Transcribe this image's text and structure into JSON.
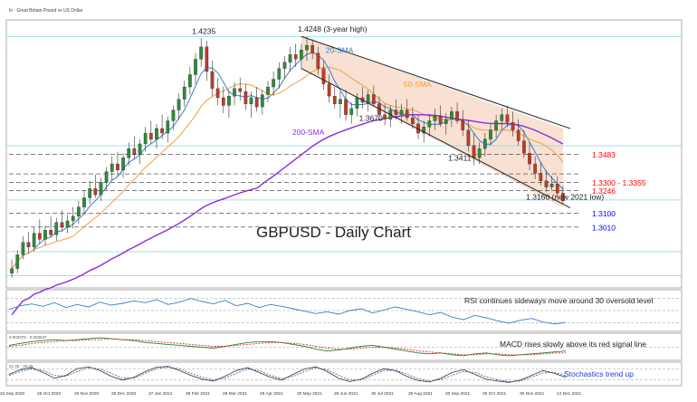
{
  "header_text": "fx · Great Britain Pound vs US Dollar",
  "chart_data": [
    {
      "panel": "price",
      "type": "candlestick",
      "title": "GBPUSD - Daily Chart",
      "x_labels": [
        "24 Sep 2020",
        "26 Oct 2020",
        "26 Nov 2020",
        "28 Dec 2020",
        "27 Jan 2021",
        "26 Feb 2021",
        "28 Mar 2021",
        "29 Apr 2021",
        "30 May 2021",
        "28 Jun 2021",
        "30 Jul 2021",
        "30 Aug 2021",
        "30 Sep 2021",
        "29 Oct 2021",
        "30 Nov 2021",
        "14 Dec 2021"
      ],
      "ylim": [
        1.265,
        1.432
      ],
      "grid": false,
      "candles": [
        [
          1.271,
          1.28,
          1.268,
          1.274
        ],
        [
          1.274,
          1.286,
          1.271,
          1.283
        ],
        [
          1.283,
          1.295,
          1.28,
          1.291
        ],
        [
          1.291,
          1.298,
          1.284,
          1.288
        ],
        [
          1.288,
          1.301,
          1.285,
          1.297
        ],
        [
          1.297,
          1.306,
          1.29,
          1.293
        ],
        [
          1.293,
          1.302,
          1.289,
          1.299
        ],
        [
          1.299,
          1.308,
          1.294,
          1.296
        ],
        [
          1.296,
          1.307,
          1.292,
          1.304
        ],
        [
          1.304,
          1.312,
          1.298,
          1.301
        ],
        [
          1.301,
          1.309,
          1.297,
          1.305
        ],
        [
          1.305,
          1.314,
          1.3,
          1.308
        ],
        [
          1.308,
          1.318,
          1.303,
          1.314
        ],
        [
          1.314,
          1.325,
          1.309,
          1.32
        ],
        [
          1.32,
          1.331,
          1.316,
          1.326
        ],
        [
          1.326,
          1.335,
          1.32,
          1.322
        ],
        [
          1.322,
          1.333,
          1.318,
          1.33
        ],
        [
          1.33,
          1.34,
          1.325,
          1.337
        ],
        [
          1.337,
          1.347,
          1.331,
          1.342
        ],
        [
          1.342,
          1.35,
          1.334,
          1.338
        ],
        [
          1.338,
          1.349,
          1.333,
          1.346
        ],
        [
          1.346,
          1.356,
          1.341,
          1.352
        ],
        [
          1.352,
          1.36,
          1.345,
          1.348
        ],
        [
          1.348,
          1.358,
          1.342,
          1.355
        ],
        [
          1.355,
          1.366,
          1.35,
          1.362
        ],
        [
          1.362,
          1.37,
          1.355,
          1.358
        ],
        [
          1.358,
          1.368,
          1.352,
          1.365
        ],
        [
          1.365,
          1.374,
          1.358,
          1.362
        ],
        [
          1.362,
          1.373,
          1.356,
          1.37
        ],
        [
          1.37,
          1.38,
          1.364,
          1.377
        ],
        [
          1.377,
          1.388,
          1.371,
          1.384
        ],
        [
          1.384,
          1.396,
          1.379,
          1.392
        ],
        [
          1.392,
          1.405,
          1.387,
          1.4
        ],
        [
          1.4,
          1.414,
          1.394,
          1.41
        ],
        [
          1.41,
          1.4235,
          1.405,
          1.418
        ],
        [
          1.418,
          1.422,
          1.396,
          1.402
        ],
        [
          1.402,
          1.409,
          1.386,
          1.391
        ],
        [
          1.391,
          1.398,
          1.38,
          1.385
        ],
        [
          1.385,
          1.392,
          1.375,
          1.38
        ],
        [
          1.38,
          1.39,
          1.372,
          1.386
        ],
        [
          1.386,
          1.395,
          1.38,
          1.391
        ],
        [
          1.391,
          1.398,
          1.383,
          1.389
        ],
        [
          1.389,
          1.394,
          1.377,
          1.381
        ],
        [
          1.381,
          1.389,
          1.372,
          1.385
        ],
        [
          1.385,
          1.392,
          1.376,
          1.379
        ],
        [
          1.379,
          1.39,
          1.374,
          1.387
        ],
        [
          1.387,
          1.396,
          1.382,
          1.392
        ],
        [
          1.392,
          1.402,
          1.386,
          1.397
        ],
        [
          1.397,
          1.408,
          1.391,
          1.404
        ],
        [
          1.404,
          1.412,
          1.397,
          1.408
        ],
        [
          1.408,
          1.418,
          1.402,
          1.413
        ],
        [
          1.413,
          1.42,
          1.405,
          1.41
        ],
        [
          1.41,
          1.42,
          1.404,
          1.416
        ],
        [
          1.416,
          1.4248,
          1.409,
          1.419
        ],
        [
          1.419,
          1.423,
          1.41,
          1.414
        ],
        [
          1.414,
          1.418,
          1.4,
          1.404
        ],
        [
          1.404,
          1.409,
          1.39,
          1.394
        ],
        [
          1.394,
          1.4,
          1.382,
          1.386
        ],
        [
          1.386,
          1.392,
          1.378,
          1.381
        ],
        [
          1.381,
          1.389,
          1.372,
          1.384
        ],
        [
          1.384,
          1.39,
          1.37,
          1.374
        ],
        [
          1.374,
          1.382,
          1.368,
          1.378
        ],
        [
          1.378,
          1.388,
          1.373,
          1.385
        ],
        [
          1.385,
          1.392,
          1.378,
          1.382
        ],
        [
          1.382,
          1.39,
          1.376,
          1.387
        ],
        [
          1.387,
          1.393,
          1.379,
          1.381
        ],
        [
          1.381,
          1.386,
          1.37,
          1.374
        ],
        [
          1.374,
          1.381,
          1.367,
          1.371
        ],
        [
          1.371,
          1.38,
          1.366,
          1.377
        ],
        [
          1.377,
          1.384,
          1.371,
          1.374
        ],
        [
          1.374,
          1.381,
          1.368,
          1.377
        ],
        [
          1.377,
          1.384,
          1.37,
          1.372
        ],
        [
          1.372,
          1.379,
          1.365,
          1.368
        ],
        [
          1.368,
          1.374,
          1.358,
          1.362
        ],
        [
          1.362,
          1.37,
          1.356,
          1.366
        ],
        [
          1.366,
          1.374,
          1.36,
          1.37
        ],
        [
          1.37,
          1.378,
          1.364,
          1.373
        ],
        [
          1.373,
          1.38,
          1.366,
          1.368
        ],
        [
          1.368,
          1.375,
          1.361,
          1.371
        ],
        [
          1.371,
          1.379,
          1.366,
          1.376
        ],
        [
          1.376,
          1.382,
          1.368,
          1.37
        ],
        [
          1.37,
          1.377,
          1.36,
          1.364
        ],
        [
          1.364,
          1.37,
          1.35,
          1.354
        ],
        [
          1.354,
          1.362,
          1.341,
          1.346
        ],
        [
          1.346,
          1.356,
          1.342,
          1.352
        ],
        [
          1.352,
          1.362,
          1.347,
          1.358
        ],
        [
          1.358,
          1.368,
          1.354,
          1.364
        ],
        [
          1.364,
          1.374,
          1.359,
          1.37
        ],
        [
          1.37,
          1.378,
          1.364,
          1.374
        ],
        [
          1.374,
          1.38,
          1.366,
          1.369
        ],
        [
          1.369,
          1.376,
          1.36,
          1.364
        ],
        [
          1.364,
          1.371,
          1.354,
          1.357
        ],
        [
          1.357,
          1.364,
          1.346,
          1.349
        ],
        [
          1.349,
          1.356,
          1.338,
          1.342
        ],
        [
          1.342,
          1.347,
          1.332,
          1.336
        ],
        [
          1.336,
          1.343,
          1.328,
          1.331
        ],
        [
          1.331,
          1.338,
          1.324,
          1.327
        ],
        [
          1.327,
          1.334,
          1.3246,
          1.329
        ],
        [
          1.329,
          1.334,
          1.32,
          1.323
        ],
        [
          1.323,
          1.328,
          1.316,
          1.318
        ]
      ],
      "series": [
        {
          "name": "20-SMA",
          "color": "#3a7ec8"
        },
        {
          "name": "50-SMA",
          "color": "#f0a040"
        },
        {
          "name": "200-SMA",
          "color": "#8a2be2"
        }
      ],
      "trend_channel": {
        "upper": [
          [
            52,
            1.4248
          ],
          [
            99,
            1.365
          ]
        ],
        "lower": [
          [
            52,
            1.404
          ],
          [
            99,
            1.3135
          ]
        ],
        "fill": "#f2c9ad"
      },
      "levels": [
        {
          "value": 1.3483,
          "label": "1.3483",
          "color": "#ff0000",
          "style": "dashed"
        },
        {
          "value": 1.33,
          "label": "1.3300 - 1.3355",
          "color": "#ff0000",
          "style": "dashed"
        },
        {
          "value": 1.3355,
          "label": "",
          "color": "#333333",
          "style": "dashed"
        },
        {
          "value": 1.3246,
          "label": "1.3246",
          "color": "#ff0000",
          "style": "dashed"
        },
        {
          "value": 1.31,
          "label": "1.3100",
          "color": "#0000ff",
          "style": "dashed"
        },
        {
          "value": 1.301,
          "label": "1.3010",
          "color": "#0000ff",
          "style": "dashed"
        }
      ],
      "fib_lines": [
        1.4248,
        1.3538,
        1.3186,
        1.285,
        1.2695
      ],
      "annotations": [
        {
          "text": "1.4235",
          "x": 34,
          "y": 1.4235
        },
        {
          "text": "1.4248 (3-year high)",
          "x": 53,
          "y": 1.4248
        },
        {
          "text": "20-SMA",
          "x": 58,
          "y": 1.411
        },
        {
          "text": "50-SMA",
          "x": 72,
          "y": 1.389
        },
        {
          "text": "1.3670",
          "x": 64,
          "y": 1.367
        },
        {
          "text": "1.3411",
          "x": 80,
          "y": 1.3411
        },
        {
          "text": "200-SMA",
          "x": 52,
          "y": 1.358
        },
        {
          "text": "1.3160 (new 2021 low)",
          "x": 94,
          "y": 1.316
        }
      ]
    },
    {
      "panel": "rsi",
      "type": "line",
      "annotation": "RSI continues sideways move around 30 oversold level",
      "ylim": [
        20,
        80
      ],
      "reference_levels": [
        30,
        50,
        70
      ],
      "series": [
        {
          "values": [
            52,
            58,
            61,
            57,
            63,
            55,
            60,
            56,
            64,
            59,
            62,
            66,
            63,
            68,
            60,
            64,
            70,
            65,
            61,
            67,
            58,
            62,
            55,
            60,
            57,
            53,
            49,
            45,
            48,
            44,
            50,
            53,
            46,
            51,
            56,
            52,
            48,
            43,
            47,
            39,
            35,
            42,
            38,
            33,
            29,
            34,
            37,
            31,
            28,
            30
          ]
        }
      ]
    },
    {
      "panel": "macd",
      "type": "line",
      "header": "0.003379 · 0.003537",
      "annotation": "MACD rises slowly above its red signal line",
      "ylim": [
        -0.012,
        0.012
      ],
      "series": [
        {
          "name": "MACD",
          "color": "#2e7d32",
          "values": [
            0.002,
            0.004,
            0.006,
            0.007,
            0.008,
            0.007,
            0.008,
            0.009,
            0.01,
            0.009,
            0.008,
            0.007,
            0.005,
            0.004,
            0.003,
            0.002,
            0.001,
            0.0,
            -0.001,
            0.001,
            0.003,
            0.005,
            0.006,
            0.006,
            0.005,
            0.003,
            0.001,
            -0.002,
            -0.004,
            -0.003,
            -0.001,
            0.001,
            0.002,
            0.0,
            -0.002,
            -0.004,
            -0.006,
            -0.007,
            -0.006,
            -0.008,
            -0.009,
            -0.007,
            -0.006,
            -0.008,
            -0.009,
            -0.008,
            -0.007,
            -0.006,
            -0.005,
            -0.004
          ]
        },
        {
          "name": "Signal",
          "color": "#d32f2f",
          "values": [
            0.001,
            0.002,
            0.004,
            0.005,
            0.006,
            0.007,
            0.007,
            0.008,
            0.008,
            0.009,
            0.008,
            0.008,
            0.007,
            0.006,
            0.005,
            0.004,
            0.003,
            0.002,
            0.001,
            0.001,
            0.002,
            0.003,
            0.004,
            0.005,
            0.005,
            0.004,
            0.003,
            0.001,
            -0.001,
            -0.002,
            -0.002,
            -0.001,
            0.0,
            0.0,
            -0.001,
            -0.002,
            -0.004,
            -0.005,
            -0.006,
            -0.007,
            -0.008,
            -0.008,
            -0.007,
            -0.007,
            -0.008,
            -0.008,
            -0.008,
            -0.007,
            -0.006,
            -0.006
          ]
        }
      ]
    },
    {
      "panel": "stochastics",
      "type": "line",
      "header": "21.46 · 29.06",
      "annotation": "Stochastics trend up",
      "ylim": [
        0,
        100
      ],
      "reference_levels": [
        20,
        80
      ],
      "series": [
        {
          "name": "%K",
          "color": "#1e3a5f",
          "values": [
            50,
            75,
            85,
            60,
            30,
            45,
            80,
            90,
            70,
            40,
            20,
            35,
            65,
            88,
            92,
            70,
            45,
            25,
            15,
            40,
            70,
            85,
            60,
            35,
            20,
            50,
            78,
            90,
            65,
            30,
            12,
            25,
            55,
            80,
            70,
            40,
            18,
            10,
            30,
            60,
            75,
            50,
            25,
            15,
            8,
            20,
            45,
            70,
            55,
            35
          ]
        },
        {
          "name": "%D",
          "color": "#555555",
          "values": [
            45,
            65,
            78,
            70,
            45,
            40,
            65,
            85,
            78,
            55,
            30,
            30,
            55,
            80,
            88,
            80,
            55,
            35,
            22,
            30,
            55,
            78,
            70,
            45,
            28,
            40,
            65,
            85,
            75,
            45,
            20,
            22,
            45,
            70,
            72,
            52,
            28,
            15,
            22,
            45,
            65,
            60,
            38,
            22,
            12,
            15,
            35,
            58,
            60,
            45
          ]
        }
      ]
    }
  ]
}
